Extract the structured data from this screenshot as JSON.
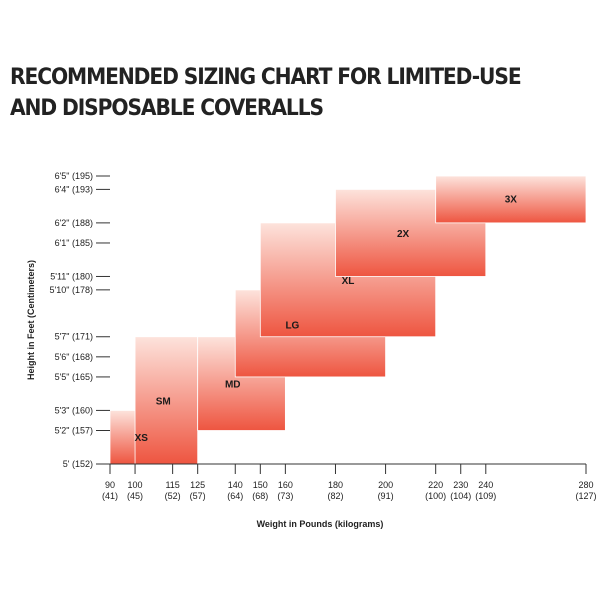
{
  "title_line1": "RECOMMENDED SIZING CHART FOR LIMITED-USE",
  "title_line2": "AND DISPOSABLE COVERALLS",
  "chart_data": {
    "type": "heatmap",
    "title": "RECOMMENDED SIZING CHART FOR LIMITED-USE AND DISPOSABLE COVERALLS",
    "xlabel": "Weight in Pounds (kilograms)",
    "ylabel": "Height in Feet (Centimeters)",
    "xlim": [
      90,
      280
    ],
    "ylim": [
      152,
      195
    ],
    "x_ticks": [
      {
        "value": 90,
        "line1": "90",
        "line2": "(41)"
      },
      {
        "value": 100,
        "line1": "100",
        "line2": "(45)"
      },
      {
        "value": 115,
        "line1": "115",
        "line2": "(52)"
      },
      {
        "value": 125,
        "line1": "125",
        "line2": "(57)"
      },
      {
        "value": 140,
        "line1": "140",
        "line2": "(64)"
      },
      {
        "value": 150,
        "line1": "150",
        "line2": "(68)"
      },
      {
        "value": 160,
        "line1": "160",
        "line2": "(73)"
      },
      {
        "value": 180,
        "line1": "180",
        "line2": "(82)"
      },
      {
        "value": 200,
        "line1": "200",
        "line2": "(91)"
      },
      {
        "value": 220,
        "line1": "220",
        "line2": "(100)"
      },
      {
        "value": 230,
        "line1": "230",
        "line2": "(104)"
      },
      {
        "value": 240,
        "line1": "240",
        "line2": "(109)"
      },
      {
        "value": 280,
        "line1": "280",
        "line2": "(127)"
      }
    ],
    "y_ticks": [
      {
        "value": 195,
        "label": "6'5\" (195)"
      },
      {
        "value": 193,
        "label": "6'4\" (193)"
      },
      {
        "value": 188,
        "label": "6'2\" (188)"
      },
      {
        "value": 185,
        "label": "6'1\" (185)"
      },
      {
        "value": 180,
        "label": "5'11\" (180)"
      },
      {
        "value": 178,
        "label": "5'10\" (178)"
      },
      {
        "value": 171,
        "label": "5'7\" (171)"
      },
      {
        "value": 168,
        "label": "5'6\" (168)"
      },
      {
        "value": 165,
        "label": "5'5\" (165)"
      },
      {
        "value": 160,
        "label": "5'3\" (160)"
      },
      {
        "value": 157,
        "label": "5'2\" (157)"
      },
      {
        "value": 152,
        "label": "5' (152)"
      }
    ],
    "sizes": [
      {
        "name": "XS",
        "weight_min": 90,
        "weight_max": 115,
        "height_min": 152,
        "height_max": 160
      },
      {
        "name": "SM",
        "weight_min": 100,
        "weight_max": 125,
        "height_min": 152,
        "height_max": 171
      },
      {
        "name": "MD",
        "weight_min": 125,
        "weight_max": 160,
        "height_min": 157,
        "height_max": 171
      },
      {
        "name": "LG",
        "weight_min": 140,
        "weight_max": 200,
        "height_min": 165,
        "height_max": 178
      },
      {
        "name": "XL",
        "weight_min": 150,
        "weight_max": 220,
        "height_min": 171,
        "height_max": 188
      },
      {
        "name": "2X",
        "weight_min": 180,
        "weight_max": 240,
        "height_min": 180,
        "height_max": 193
      },
      {
        "name": "3X",
        "weight_min": 220,
        "weight_max": 280,
        "height_min": 188,
        "height_max": 195
      }
    ],
    "colors": {
      "fill_top": "#ee5540",
      "fill_bottom": "#fde3dc",
      "axis": "#333333"
    }
  }
}
